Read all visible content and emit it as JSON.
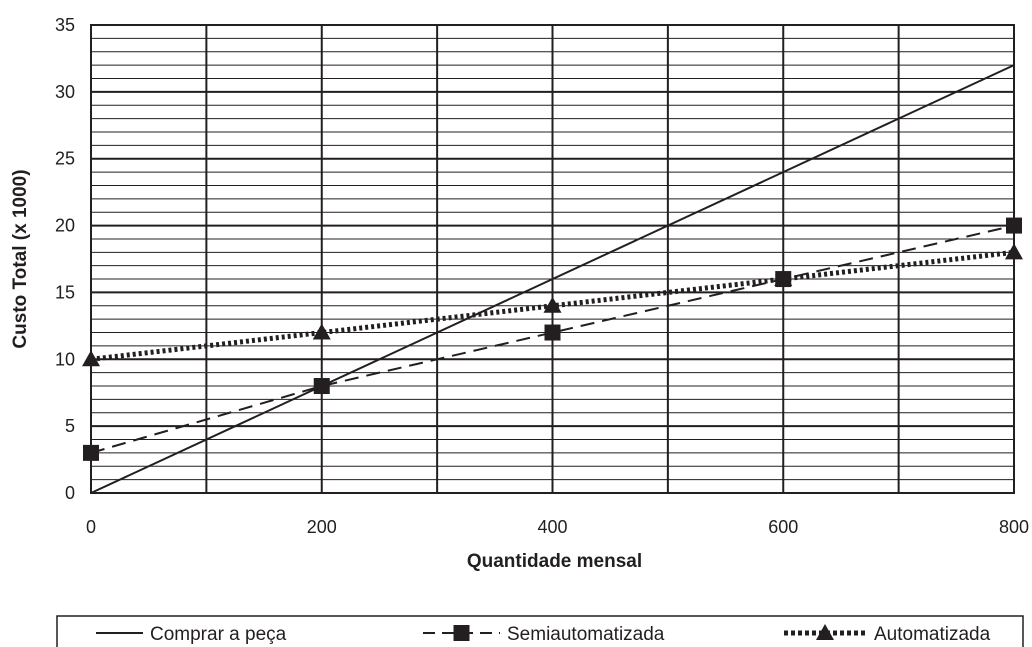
{
  "chart_data": {
    "type": "line",
    "title": "",
    "xlabel": "Quantidade mensal",
    "ylabel": "Custo Total (x 1000)",
    "xlim": [
      0,
      800
    ],
    "ylim": [
      0,
      35
    ],
    "x_ticks": [
      0,
      200,
      400,
      600,
      800
    ],
    "y_ticks": [
      0,
      5,
      10,
      15,
      20,
      25,
      30,
      35
    ],
    "grid": true,
    "grid_major_x": [
      0,
      100,
      200,
      300,
      400,
      500,
      600,
      700,
      800
    ],
    "grid_major_y": [
      0,
      5,
      10,
      15,
      20,
      25,
      30,
      35
    ],
    "grid_minor_y_step": 1,
    "legend_position": "bottom",
    "series": [
      {
        "name": "Comprar a peça",
        "style": "solid",
        "marker": "none",
        "color": "#231f20",
        "x": [
          0,
          800
        ],
        "values": [
          0,
          32
        ]
      },
      {
        "name": "Semiautomatizada",
        "style": "dashed",
        "marker": "square",
        "color": "#231f20",
        "x": [
          0,
          200,
          400,
          600,
          800
        ],
        "values": [
          3,
          8,
          12,
          16,
          20
        ]
      },
      {
        "name": "Automatizada",
        "style": "dotted",
        "marker": "triangle",
        "color": "#231f20",
        "x": [
          0,
          200,
          400,
          600,
          800
        ],
        "values": [
          10,
          12,
          14,
          16,
          18
        ]
      }
    ]
  }
}
